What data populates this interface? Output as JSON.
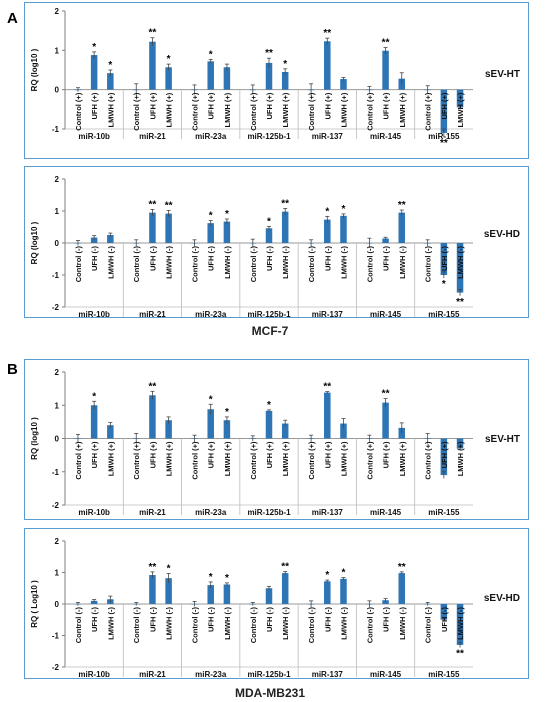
{
  "sections": [
    {
      "letter": "A",
      "cell_line": "MCF-7"
    },
    {
      "letter": "B",
      "cell_line": "MDA-MB231"
    }
  ],
  "colors": {
    "bar": "#2e75b6",
    "panel_border": "#5b9bd5",
    "axis": "#7f7f7f"
  },
  "chart_data": [
    {
      "type": "bar",
      "panel": "sEV-HT",
      "ylabel": "RQ (log10 )",
      "ylim": [
        -1,
        2
      ],
      "yticks": [
        -1,
        0,
        1,
        2
      ],
      "treatments": [
        "Control (+)",
        "UFH (+)",
        "LMWH (+)"
      ],
      "categories": [
        "miR-10b",
        "miR-21",
        "miR-23a",
        "miR-125b-1",
        "miR-137",
        "miR-145",
        "miR-155"
      ],
      "series": [
        {
          "name": "Control (+)",
          "values": [
            0,
            0,
            0,
            0,
            0,
            0,
            0
          ],
          "errors": [
            0.05,
            0.15,
            0.12,
            0.12,
            0.15,
            0.08,
            0.1
          ],
          "stars": [
            "",
            "",
            "",
            "",
            "",
            "",
            ""
          ]
        },
        {
          "name": "UFH (+)",
          "values": [
            0.88,
            1.22,
            0.72,
            0.68,
            1.23,
            0.99,
            -1.1
          ],
          "errors": [
            0.08,
            0.1,
            0.05,
            0.12,
            0.08,
            0.08,
            0.1
          ],
          "stars": [
            "*",
            "**",
            "*",
            "**",
            "**",
            "**",
            "**"
          ]
        },
        {
          "name": "LMWH (+)",
          "values": [
            0.42,
            0.57,
            0.57,
            0.45,
            0.27,
            0.28,
            -0.45
          ],
          "errors": [
            0.08,
            0.08,
            0.08,
            0.08,
            0.04,
            0.15,
            0.05
          ],
          "stars": [
            "*",
            "*",
            "",
            "*",
            "",
            "",
            ""
          ]
        }
      ]
    },
    {
      "type": "bar",
      "panel": "sEV-HD",
      "ylabel": "RQ (log10 )",
      "ylim": [
        -2,
        2
      ],
      "yticks": [
        -2,
        -1,
        0,
        1,
        2
      ],
      "treatments": [
        "Control (-)",
        "UFH (-)",
        "LMWH (-)"
      ],
      "categories": [
        "miR-10b",
        "miR-21",
        "miR-23a",
        "miR-125b-1",
        "miR-137",
        "miR-145",
        "miR-155"
      ],
      "series": [
        {
          "name": "Control (-)",
          "values": [
            0,
            0,
            0,
            0,
            0,
            0,
            0
          ],
          "errors": [
            0.08,
            0.1,
            0.1,
            0.12,
            0.1,
            0.15,
            0.1
          ],
          "stars": [
            "",
            "",
            "",
            "",
            "",
            "",
            ""
          ]
        },
        {
          "name": "UFH (-)",
          "values": [
            0.17,
            0.95,
            0.62,
            0.46,
            0.73,
            0.14,
            -1.0
          ],
          "errors": [
            0.06,
            0.1,
            0.08,
            0.06,
            0.1,
            0.04,
            0.1
          ],
          "stars": [
            "",
            "**",
            "*",
            "*",
            "*",
            "",
            "*"
          ]
        },
        {
          "name": "LMWH (-)",
          "values": [
            0.25,
            0.92,
            0.67,
            0.98,
            0.85,
            0.95,
            -1.55
          ],
          "errors": [
            0.06,
            0.1,
            0.08,
            0.1,
            0.06,
            0.08,
            0.1
          ],
          "stars": [
            "",
            "**",
            "*",
            "**",
            "*",
            "**",
            "**"
          ]
        }
      ]
    },
    {
      "type": "bar",
      "panel": "sEV-HT",
      "ylabel": "RQ (log10 )",
      "ylim": [
        -2,
        2
      ],
      "yticks": [
        -2,
        -1,
        0,
        1,
        2
      ],
      "treatments": [
        "Control (+)",
        "UFH (+)",
        "LMWH (+)"
      ],
      "categories": [
        "miR-10b",
        "miR-21",
        "miR-23a",
        "miR-125b-1",
        "miR-137",
        "miR-145",
        "miR-155"
      ],
      "series": [
        {
          "name": "Control (+)",
          "values": [
            0,
            0,
            0,
            0,
            0,
            0,
            0
          ],
          "errors": [
            0.12,
            0.15,
            0.1,
            0.08,
            0.1,
            0.1,
            0.15
          ],
          "stars": [
            "",
            "",
            "",
            "",
            "",
            "",
            ""
          ]
        },
        {
          "name": "UFH (+)",
          "values": [
            1.0,
            1.3,
            0.88,
            0.83,
            1.38,
            1.08,
            -1.1
          ],
          "errors": [
            0.12,
            0.12,
            0.15,
            0.03,
            0.03,
            0.12,
            0.1
          ],
          "stars": [
            "*",
            "**",
            "*",
            "*",
            "**",
            "**",
            ""
          ]
        },
        {
          "name": "LMWH (+)",
          "values": [
            0.4,
            0.55,
            0.55,
            0.45,
            0.45,
            0.32,
            -0.3
          ],
          "errors": [
            0.08,
            0.1,
            0.1,
            0.1,
            0.15,
            0.15,
            0.05
          ],
          "stars": [
            "",
            "",
            "*",
            "",
            "",
            "",
            ""
          ]
        }
      ]
    },
    {
      "type": "bar",
      "panel": "sEV-HD",
      "ylabel": "RQ ( Log10 )",
      "ylim": [
        -2,
        2
      ],
      "yticks": [
        -2,
        -1,
        0,
        1,
        2
      ],
      "treatments": [
        "Control (-)",
        "UFH (-)",
        "LMWH (-)"
      ],
      "categories": [
        "miR-10b",
        "miR-21",
        "miR-23a",
        "miR-125b-1",
        "miR-137",
        "miR-145",
        "miR-155"
      ],
      "series": [
        {
          "name": "Control (-)",
          "values": [
            0,
            0,
            0,
            0,
            0,
            0,
            0
          ],
          "errors": [
            0.05,
            0.05,
            0.08,
            0.05,
            0.1,
            0.1,
            0.05
          ],
          "stars": [
            "",
            "",
            "",
            "",
            "",
            "",
            ""
          ]
        },
        {
          "name": "UFH (-)",
          "values": [
            0.1,
            0.92,
            0.6,
            0.5,
            0.72,
            0.12,
            -0.5
          ],
          "errors": [
            0.04,
            0.1,
            0.1,
            0.06,
            0.04,
            0.05,
            0.05
          ],
          "stars": [
            "",
            "**",
            "*",
            "",
            "*",
            "",
            ""
          ]
        },
        {
          "name": "LMWH (-)",
          "values": [
            0.15,
            0.82,
            0.62,
            0.98,
            0.8,
            0.98,
            -1.3
          ],
          "errors": [
            0.1,
            0.15,
            0.05,
            0.05,
            0.04,
            0.04,
            0.08
          ],
          "stars": [
            "",
            "*",
            "*",
            "**",
            "*",
            "**",
            "**"
          ]
        }
      ]
    }
  ]
}
